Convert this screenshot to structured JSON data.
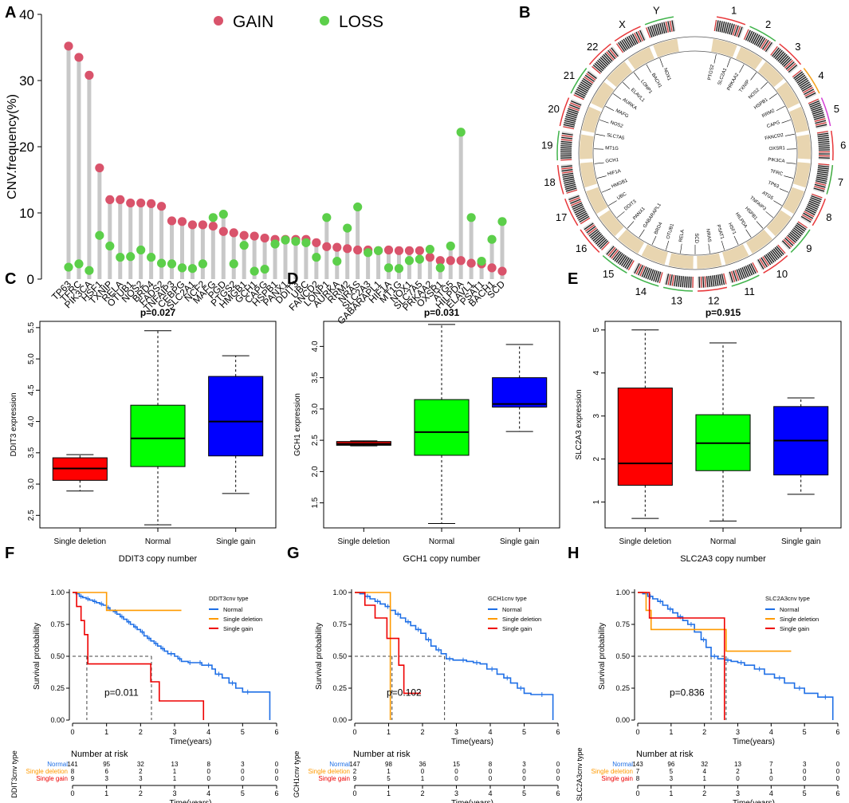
{
  "chart_data": [
    {
      "panel": "A",
      "type": "lollipop",
      "ylabel": "CNV.frequency(%)",
      "ylim": [
        0,
        40
      ],
      "yticks": [
        0,
        10,
        20,
        30,
        40
      ],
      "legend": {
        "gain_label": "GAIN",
        "loss_label": "LOSS",
        "placement": "top"
      },
      "colors": {
        "gain": "#d9536b",
        "loss": "#5ccf4a",
        "stick": "#c8c8c8"
      },
      "categories": [
        "TP63",
        "TFRC",
        "PIK3CA",
        "HSF1",
        "TXNIP",
        "RELA",
        "OTUB1",
        "NOS2",
        "BRD4",
        "FADS2",
        "TNFAIP3",
        "CEBPG",
        "SLC2A1",
        "NCF2",
        "MAFG",
        "PGD",
        "PTGS2",
        "HMGB1",
        "GCH1",
        "CAPG",
        "HSPB1",
        "PANX1",
        "DDIT3",
        "UBC",
        "FANCD2",
        "LONP1",
        "AURKA",
        "RRM2",
        "NRAS",
        "SLC2A3",
        "GABARAPL1",
        "HIF1A",
        "MT1G",
        "NOX1",
        "SLC7A5",
        "PRKAA2",
        "OXSR1",
        "ATG5",
        "HILPDA",
        "ELAVL1",
        "PSAT1",
        "BACH1",
        "SCD"
      ],
      "series": [
        {
          "name": "GAIN",
          "values": [
            35.2,
            33.5,
            30.8,
            16.8,
            12.0,
            12.0,
            11.5,
            11.5,
            11.4,
            11.0,
            8.8,
            8.7,
            8.2,
            8.2,
            8.0,
            7.2,
            7.0,
            6.6,
            6.5,
            6.2,
            6.0,
            6.0,
            6.0,
            6.0,
            5.5,
            4.9,
            4.8,
            4.6,
            4.4,
            4.4,
            4.3,
            4.4,
            4.3,
            4.3,
            4.3,
            3.3,
            2.8,
            2.8,
            2.8,
            2.4,
            2.3,
            1.7,
            1.2
          ]
        },
        {
          "name": "LOSS",
          "values": [
            1.8,
            2.3,
            1.3,
            6.6,
            5.0,
            3.3,
            3.4,
            4.4,
            3.3,
            2.4,
            2.3,
            1.7,
            1.6,
            2.3,
            9.3,
            9.8,
            2.3,
            5.1,
            1.2,
            1.5,
            5.3,
            5.9,
            5.7,
            5.5,
            3.3,
            9.3,
            2.7,
            7.7,
            10.9,
            4.0,
            4.3,
            1.7,
            1.6,
            2.8,
            3.0,
            4.5,
            1.7,
            5.0,
            22.2,
            9.3,
            2.7,
            6.0,
            8.7
          ]
        }
      ]
    },
    {
      "panel": "B",
      "type": "circos",
      "chromosomes": [
        "1",
        "2",
        "3",
        "4",
        "5",
        "6",
        "7",
        "8",
        "9",
        "10",
        "11",
        "12",
        "13",
        "14",
        "15",
        "16",
        "17",
        "18",
        "19",
        "20",
        "21",
        "22",
        "X",
        "Y"
      ],
      "gene_labels": [
        "PTGS2",
        "SLC2A1",
        "PRKAA2",
        "TXNIP",
        "NOS2",
        "HSPB1",
        "RRM2",
        "CAPG",
        "FANCD2",
        "OXSR1",
        "PIK3CA",
        "TFRC",
        "TP63",
        "ATG5",
        "TNFAIP3",
        "HSPB1",
        "HILPDA",
        "HSF1",
        "PSAT1",
        "NRAS",
        "SCD",
        "RELA",
        "OTUB1",
        "BRD4",
        "GABARAPL1",
        "PANX1",
        "DDIT3",
        "UBC",
        "HMGB1",
        "HIF1A",
        "GCH1",
        "MT1G",
        "SLC7A5",
        "NOS2",
        "MAFG",
        "AURKA",
        "ELAVL1",
        "LONP1",
        "BACH1",
        "NOX1"
      ]
    },
    {
      "panel": "C",
      "type": "boxplot",
      "title": "p=0.027",
      "xlabel": "DDIT3 copy number",
      "ylabel": "DDIT3 expression",
      "ylim": [
        2.3,
        5.6
      ],
      "yticks": [
        "2.5",
        "3.0",
        "3.5",
        "4.0",
        "4.5",
        "5.0",
        "5.5"
      ],
      "categories": [
        "Single deletion",
        "Normal",
        "Single gain"
      ],
      "colors": [
        "#ff0000",
        "#00ff00",
        "#0000ff"
      ],
      "boxes": [
        {
          "min": 2.89,
          "q1": 3.06,
          "median": 3.25,
          "q3": 3.42,
          "max": 3.47
        },
        {
          "min": 2.35,
          "q1": 3.28,
          "median": 3.73,
          "q3": 4.26,
          "max": 5.45
        },
        {
          "min": 2.85,
          "q1": 3.45,
          "median": 4.0,
          "q3": 4.72,
          "max": 5.05
        }
      ]
    },
    {
      "panel": "D",
      "type": "boxplot",
      "title": "p=0.031",
      "xlabel": "GCH1 copy number",
      "ylabel": "GCH1 expression",
      "ylim": [
        1.1,
        4.4
      ],
      "yticks": [
        "1.5",
        "2.0",
        "2.5",
        "3.0",
        "3.5",
        "4.0"
      ],
      "categories": [
        "Single deletion",
        "Normal",
        "Single gain"
      ],
      "colors": [
        "#cc0000",
        "#00ff00",
        "#0000ff"
      ],
      "boxes": [
        {
          "min": 2.41,
          "q1": 2.42,
          "median": 2.44,
          "q3": 2.48,
          "max": 2.49
        },
        {
          "min": 1.17,
          "q1": 2.26,
          "median": 2.63,
          "q3": 3.15,
          "max": 4.35
        },
        {
          "min": 2.64,
          "q1": 3.03,
          "median": 3.08,
          "q3": 3.5,
          "max": 4.03
        }
      ]
    },
    {
      "panel": "E",
      "type": "boxplot",
      "title": "p=0.915",
      "xlabel": "SLC2A3 copy number",
      "ylabel": "SLC2A3 expression",
      "ylim": [
        0.4,
        5.2
      ],
      "yticks": [
        "1",
        "2",
        "3",
        "4",
        "5"
      ],
      "categories": [
        "Single deletion",
        "Normal",
        "Single gain"
      ],
      "colors": [
        "#ff0000",
        "#00ff00",
        "#0000ff"
      ],
      "boxes": [
        {
          "min": 0.62,
          "q1": 1.39,
          "median": 1.9,
          "q3": 3.65,
          "max": 5.0
        },
        {
          "min": 0.56,
          "q1": 1.73,
          "median": 2.37,
          "q3": 3.03,
          "max": 4.7
        },
        {
          "min": 1.18,
          "q1": 1.63,
          "median": 2.43,
          "q3": 3.22,
          "max": 3.42
        }
      ]
    },
    {
      "panel": "F",
      "type": "survival",
      "legend_title": "DDIT3cnv type",
      "pvalue": "p=0.011",
      "xlabel": "Time(years)",
      "ylabel": "Survival probability",
      "risk_title": "Number at risk",
      "risk_ylabel": "DDIT3cnv type",
      "xlim": [
        0,
        6
      ],
      "ylim": [
        0,
        1
      ],
      "xticks": [
        "0",
        "1",
        "2",
        "3",
        "4",
        "5",
        "6"
      ],
      "yticks": [
        "0.00",
        "0.25",
        "0.50",
        "0.75",
        "1.00"
      ],
      "median_lines": [
        0.42,
        2.32
      ],
      "series": [
        {
          "name": "Normal",
          "color": "#1e6fe6",
          "times": [
            0,
            0.1,
            0.2,
            0.3,
            0.4,
            0.5,
            0.6,
            0.7,
            0.8,
            0.9,
            1.0,
            1.1,
            1.2,
            1.3,
            1.4,
            1.5,
            1.6,
            1.7,
            1.8,
            1.9,
            2.0,
            2.1,
            2.2,
            2.3,
            2.4,
            2.5,
            2.6,
            2.7,
            2.8,
            3.0,
            3.1,
            3.2,
            3.4,
            3.5,
            3.7,
            3.8,
            3.9,
            4.1,
            4.2,
            4.4,
            4.6,
            4.8,
            5.0,
            5.3,
            5.8
          ],
          "surv": [
            1.0,
            0.99,
            0.97,
            0.96,
            0.95,
            0.94,
            0.93,
            0.92,
            0.91,
            0.9,
            0.88,
            0.86,
            0.85,
            0.83,
            0.81,
            0.79,
            0.77,
            0.75,
            0.73,
            0.71,
            0.69,
            0.66,
            0.64,
            0.62,
            0.6,
            0.58,
            0.56,
            0.54,
            0.52,
            0.5,
            0.48,
            0.46,
            0.45,
            0.45,
            0.45,
            0.43,
            0.43,
            0.4,
            0.36,
            0.33,
            0.29,
            0.25,
            0.22,
            0.22,
            0.0
          ],
          "risk": [
            "141",
            "95",
            "32",
            "13",
            "8",
            "3",
            "0"
          ]
        },
        {
          "name": "Single deletion",
          "color": "#ff9a00",
          "times": [
            0,
            1.0,
            3.2
          ],
          "surv": [
            1.0,
            0.86,
            0.86
          ],
          "risk": [
            "8",
            "6",
            "2",
            "1",
            "0",
            "0",
            "0"
          ]
        },
        {
          "name": "Single gain",
          "color": "#ee0000",
          "times": [
            0,
            0.12,
            0.25,
            0.35,
            0.45,
            2.3,
            2.55,
            3.85
          ],
          "surv": [
            1.0,
            0.89,
            0.78,
            0.67,
            0.44,
            0.3,
            0.15,
            0.0
          ],
          "risk": [
            "9",
            "3",
            "3",
            "1",
            "0",
            "0",
            "0"
          ]
        }
      ]
    },
    {
      "panel": "G",
      "type": "survival",
      "legend_title": "GCH1cnv type",
      "pvalue": "p=0.102",
      "xlabel": "Time(years)",
      "ylabel": "Survival probability",
      "risk_title": "Number at risk",
      "risk_ylabel": "GCH1cnv type",
      "xlim": [
        0,
        6
      ],
      "ylim": [
        0,
        1
      ],
      "xticks": [
        "0",
        "1",
        "2",
        "3",
        "4",
        "5",
        "6"
      ],
      "yticks": [
        "0.00",
        "0.25",
        "0.50",
        "0.75",
        "1.00"
      ],
      "median_lines": [
        1.05,
        1.1,
        2.65
      ],
      "series": [
        {
          "name": "Normal",
          "color": "#1e6fe6",
          "times": [
            0,
            0.15,
            0.3,
            0.45,
            0.6,
            0.75,
            0.9,
            1.05,
            1.2,
            1.35,
            1.5,
            1.65,
            1.8,
            1.95,
            2.1,
            2.25,
            2.4,
            2.55,
            2.7,
            2.9,
            3.1,
            3.3,
            3.5,
            3.7,
            3.9,
            4.2,
            4.4,
            4.6,
            4.8,
            5.0,
            5.2,
            5.85
          ],
          "surv": [
            1.0,
            0.99,
            0.97,
            0.95,
            0.93,
            0.91,
            0.89,
            0.86,
            0.83,
            0.8,
            0.77,
            0.74,
            0.71,
            0.68,
            0.63,
            0.58,
            0.55,
            0.52,
            0.48,
            0.47,
            0.47,
            0.46,
            0.45,
            0.44,
            0.4,
            0.36,
            0.33,
            0.29,
            0.25,
            0.21,
            0.2,
            0.0
          ],
          "risk": [
            "147",
            "98",
            "36",
            "15",
            "8",
            "3",
            "0"
          ]
        },
        {
          "name": "Single deletion",
          "color": "#ff9a00",
          "times": [
            0,
            1.05
          ],
          "surv": [
            1.0,
            0.0
          ],
          "risk": [
            "2",
            "1",
            "0",
            "0",
            "0",
            "0",
            "0"
          ]
        },
        {
          "name": "Single gain",
          "color": "#ee0000",
          "times": [
            0,
            0.3,
            0.6,
            0.95,
            1.3,
            1.45,
            1.95
          ],
          "surv": [
            1.0,
            0.9,
            0.8,
            0.64,
            0.43,
            0.21,
            0.21
          ],
          "risk": [
            "9",
            "5",
            "1",
            "0",
            "0",
            "0",
            "0"
          ]
        }
      ]
    },
    {
      "panel": "H",
      "type": "survival",
      "legend_title": "SLC2A3cnv type",
      "pvalue": "p=0.836",
      "xlabel": "Time(years)",
      "ylabel": "Survival probability",
      "risk_title": "Number at risk",
      "risk_ylabel": "SLC2A3cnv type",
      "xlim": [
        0,
        6
      ],
      "ylim": [
        0,
        1
      ],
      "xticks": [
        "0",
        "1",
        "2",
        "3",
        "4",
        "5",
        "6"
      ],
      "yticks": [
        "0.00",
        "0.25",
        "0.50",
        "0.75",
        "1.00"
      ],
      "median_lines": [
        2.2,
        2.65
      ],
      "series": [
        {
          "name": "Normal",
          "color": "#1e6fe6",
          "times": [
            0,
            0.15,
            0.3,
            0.45,
            0.6,
            0.75,
            0.9,
            1.05,
            1.2,
            1.35,
            1.5,
            1.7,
            1.9,
            2.05,
            2.2,
            2.4,
            2.6,
            2.8,
            3.0,
            3.2,
            3.5,
            3.8,
            4.1,
            4.4,
            4.7,
            5.0,
            5.4,
            5.85
          ],
          "surv": [
            1.0,
            0.99,
            0.97,
            0.95,
            0.93,
            0.9,
            0.87,
            0.84,
            0.81,
            0.78,
            0.75,
            0.69,
            0.63,
            0.57,
            0.5,
            0.48,
            0.47,
            0.46,
            0.45,
            0.43,
            0.4,
            0.36,
            0.33,
            0.29,
            0.25,
            0.21,
            0.18,
            0.0
          ],
          "risk": [
            "143",
            "96",
            "32",
            "13",
            "7",
            "3",
            "0"
          ]
        },
        {
          "name": "Single deletion",
          "color": "#ff9a00",
          "times": [
            0,
            0.25,
            0.4,
            2.6,
            2.65,
            4.6
          ],
          "surv": [
            1.0,
            0.86,
            0.71,
            0.71,
            0.54,
            0.54
          ],
          "risk": [
            "7",
            "5",
            "4",
            "2",
            "1",
            "0",
            "0"
          ]
        },
        {
          "name": "Single gain",
          "color": "#ee0000",
          "times": [
            0,
            0.35,
            2.6
          ],
          "surv": [
            1.0,
            0.8,
            0.0
          ],
          "risk": [
            "8",
            "3",
            "1",
            "0",
            "0",
            "0",
            "0"
          ]
        }
      ]
    }
  ],
  "panel_letters": [
    "A",
    "B",
    "C",
    "D",
    "E",
    "F",
    "G",
    "H"
  ]
}
